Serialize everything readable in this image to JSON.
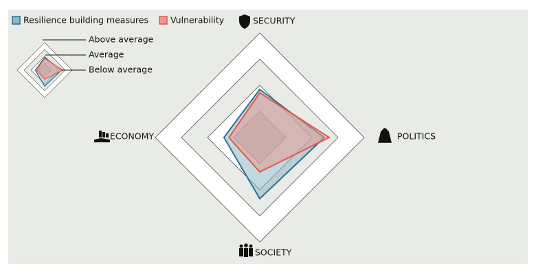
{
  "chart_data": {
    "type": "radar",
    "categories": [
      "SECURITY",
      "POLITICS",
      "SOCIETY",
      "ECONOMY"
    ],
    "series": [
      {
        "name": "Resilience building measures",
        "color": "#2e6f8e",
        "fill": "#8fb8c6",
        "values": [
          1.84,
          2.47,
          2.34,
          1.37
        ]
      },
      {
        "name": "Vulnerability",
        "color": "#e4574a",
        "fill": "#e49a92",
        "values": [
          1.71,
          2.66,
          1.32,
          1.18
        ]
      }
    ],
    "rlim": [
      0,
      4
    ],
    "rticks": [
      1,
      2,
      3,
      4
    ],
    "scale_labels": [
      "Above average",
      "Average",
      "Below average"
    ]
  }
}
